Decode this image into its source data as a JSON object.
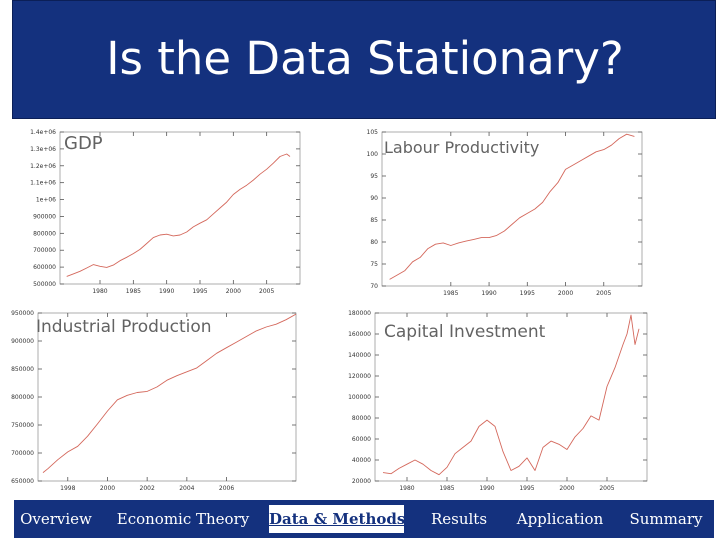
{
  "slide": {
    "title": "Is the Data Stationary?"
  },
  "nav": {
    "items": [
      {
        "label": "Overview",
        "active": false
      },
      {
        "label": "Economic Theory",
        "active": false
      },
      {
        "label": "Data & Methods",
        "active": true
      },
      {
        "label": "Results",
        "active": false
      },
      {
        "label": "Application",
        "active": false
      },
      {
        "label": "Summary",
        "active": false
      }
    ]
  },
  "colors": {
    "title_bar": "#14317e",
    "line": "#d4685c",
    "overlay_text": "#636363"
  },
  "chart_data": [
    {
      "type": "line",
      "title": "GDP",
      "xlabel": "",
      "ylabel": "",
      "xlim": [
        1974,
        2010
      ],
      "ylim": [
        500000,
        1400000
      ],
      "xticks": [
        1980,
        1985,
        1990,
        1995,
        2000,
        2005
      ],
      "yticks": [
        500000,
        600000,
        700000,
        800000,
        900000,
        1000000,
        1100000,
        1200000,
        1300000,
        1400000
      ],
      "ytick_labels": [
        "500000",
        "600000",
        "700000",
        "800000",
        "900000",
        "1e+06",
        "1.1e+06",
        "1.2e+06",
        "1.3e+06",
        "1.4e+06"
      ],
      "grid": false,
      "series": [
        {
          "x": [
            1975,
            1976,
            1977,
            1978,
            1979,
            1980,
            1981,
            1982,
            1983,
            1984,
            1985,
            1986,
            1987,
            1988,
            1989,
            1990,
            1991,
            1992,
            1993,
            1994,
            1995,
            1996,
            1997,
            1998,
            1999,
            2000,
            2001,
            2002,
            2003,
            2004,
            2005,
            2006,
            2007,
            2008,
            2008.5
          ],
          "y": [
            545000,
            560000,
            575000,
            595000,
            615000,
            605000,
            598000,
            612000,
            638000,
            658000,
            680000,
            705000,
            740000,
            775000,
            790000,
            795000,
            785000,
            790000,
            808000,
            838000,
            860000,
            880000,
            915000,
            950000,
            985000,
            1030000,
            1060000,
            1085000,
            1115000,
            1150000,
            1180000,
            1215000,
            1255000,
            1270000,
            1255000
          ]
        }
      ]
    },
    {
      "type": "line",
      "title": "Labour Productivity",
      "xlabel": "",
      "ylabel": "",
      "xlim": [
        1976,
        2010
      ],
      "ylim": [
        70,
        105
      ],
      "xticks": [
        1985,
        1990,
        1995,
        2000,
        2005
      ],
      "yticks": [
        70,
        75,
        80,
        85,
        90,
        95,
        100,
        105
      ],
      "grid": false,
      "series": [
        {
          "x": [
            1977,
            1978,
            1979,
            1980,
            1981,
            1982,
            1983,
            1984,
            1985,
            1986,
            1987,
            1988,
            1989,
            1990,
            1991,
            1992,
            1993,
            1994,
            1995,
            1996,
            1997,
            1998,
            1999,
            2000,
            2001,
            2002,
            2003,
            2004,
            2005,
            2006,
            2007,
            2008,
            2009
          ],
          "y": [
            71.5,
            72.5,
            73.5,
            75.5,
            76.5,
            78.5,
            79.5,
            79.8,
            79.2,
            79.8,
            80.2,
            80.6,
            81.0,
            81.0,
            81.5,
            82.5,
            84.0,
            85.5,
            86.5,
            87.5,
            89.0,
            91.5,
            93.5,
            96.5,
            97.5,
            98.5,
            99.5,
            100.5,
            101.0,
            102.0,
            103.5,
            104.5,
            104.0
          ]
        }
      ]
    },
    {
      "type": "line",
      "title": "Industrial Production",
      "xlabel": "",
      "ylabel": "",
      "xlim": [
        1996.5,
        2009.5
      ],
      "ylim": [
        650000,
        950000
      ],
      "xticks": [
        1998,
        2000,
        2002,
        2004,
        2006
      ],
      "yticks": [
        650000,
        700000,
        750000,
        800000,
        850000,
        900000,
        950000
      ],
      "grid": false,
      "series": [
        {
          "x": [
            1996.75,
            1997,
            1997.5,
            1998,
            1998.5,
            1999,
            1999.5,
            2000,
            2000.5,
            2001,
            2001.5,
            2002,
            2002.5,
            2003,
            2003.5,
            2004,
            2004.5,
            2005,
            2005.5,
            2006,
            2006.5,
            2007,
            2007.5,
            2008,
            2008.5,
            2009,
            2009.5
          ],
          "y": [
            665000,
            672000,
            688000,
            702000,
            712000,
            730000,
            752000,
            775000,
            795000,
            803000,
            808000,
            810000,
            818000,
            830000,
            838000,
            845000,
            852000,
            865000,
            878000,
            888000,
            898000,
            908000,
            918000,
            925000,
            930000,
            938000,
            948000
          ]
        }
      ]
    },
    {
      "type": "line",
      "title": "Capital Investment",
      "xlabel": "",
      "ylabel": "",
      "xlim": [
        1976,
        2010
      ],
      "ylim": [
        20000,
        180000
      ],
      "xticks": [
        1980,
        1985,
        1990,
        1995,
        2000,
        2005
      ],
      "yticks": [
        20000,
        40000,
        60000,
        80000,
        100000,
        120000,
        140000,
        160000,
        180000
      ],
      "grid": false,
      "series": [
        {
          "x": [
            1977,
            1978,
            1979,
            1980,
            1981,
            1982,
            1983,
            1984,
            1985,
            1986,
            1987,
            1988,
            1989,
            1990,
            1991,
            1992,
            1993,
            1994,
            1995,
            1996,
            1997,
            1998,
            1999,
            2000,
            2001,
            2002,
            2003,
            2004,
            2005,
            2006,
            2007,
            2007.5,
            2008,
            2008.5,
            2009
          ],
          "y": [
            28000,
            27000,
            32000,
            36000,
            40000,
            36000,
            30000,
            26000,
            33000,
            46000,
            52000,
            58000,
            72000,
            78000,
            72000,
            48000,
            30000,
            34000,
            42000,
            30000,
            52000,
            58000,
            55000,
            50000,
            62000,
            70000,
            82000,
            78000,
            110000,
            128000,
            150000,
            160000,
            178000,
            150000,
            165000
          ]
        }
      ]
    }
  ]
}
